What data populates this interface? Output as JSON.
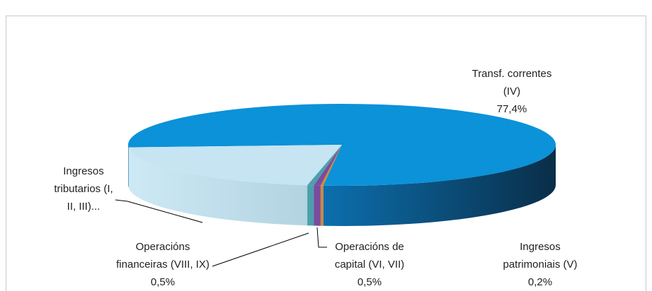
{
  "chart_data": {
    "type": "pie3d",
    "categories": [
      "Transf. correntes (IV)",
      "Ingresos tributarios (I, II, III)...",
      "Operacións financeiras (VIII, IX)",
      "Operacións de capital (VI, VII)",
      "Ingresos patrimoniais (V)"
    ],
    "values": [
      77.4,
      21.4,
      0.5,
      0.5,
      0.2
    ],
    "value_labels": [
      "77,4%",
      null,
      "0,5%",
      "0,5%",
      "0,2%"
    ],
    "colors": [
      "#0b92d8",
      "#c6e4f1",
      "#4d9fae",
      "#7a4c9c",
      "#d0883a"
    ]
  }
}
